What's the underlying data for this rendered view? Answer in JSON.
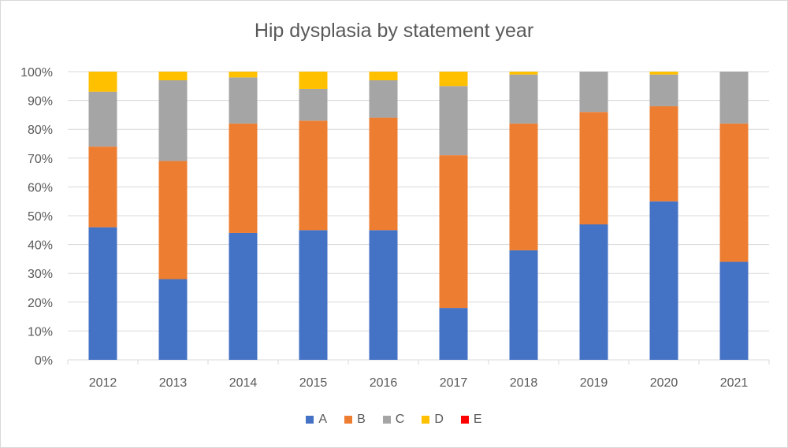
{
  "chart_data": {
    "type": "bar",
    "stacked": "percent",
    "title": "Hip dysplasia by statement year",
    "xlabel": "",
    "ylabel": "",
    "ylim": [
      0,
      100
    ],
    "yticks": [
      "0%",
      "10%",
      "20%",
      "30%",
      "40%",
      "50%",
      "60%",
      "70%",
      "80%",
      "90%",
      "100%"
    ],
    "grid": true,
    "legend_position": "bottom",
    "categories": [
      "2012",
      "2013",
      "2014",
      "2015",
      "2016",
      "2017",
      "2018",
      "2019",
      "2020",
      "2021"
    ],
    "series": [
      {
        "name": "A",
        "color": "#4472C4",
        "values": [
          46,
          28,
          44,
          45,
          45,
          18,
          38,
          47,
          55,
          34
        ]
      },
      {
        "name": "B",
        "color": "#ED7D31",
        "values": [
          28,
          41,
          38,
          38,
          39,
          53,
          44,
          39,
          33,
          48
        ]
      },
      {
        "name": "C",
        "color": "#A5A5A5",
        "values": [
          19,
          28,
          16,
          11,
          13,
          24,
          17,
          14,
          11,
          18
        ]
      },
      {
        "name": "D",
        "color": "#FFC000",
        "values": [
          7,
          3,
          2,
          6,
          3,
          5,
          1,
          0,
          1,
          0
        ]
      },
      {
        "name": "E",
        "color": "#FF0000",
        "values": [
          0,
          0,
          0,
          0,
          0,
          0,
          0,
          0,
          0,
          0
        ]
      }
    ]
  }
}
